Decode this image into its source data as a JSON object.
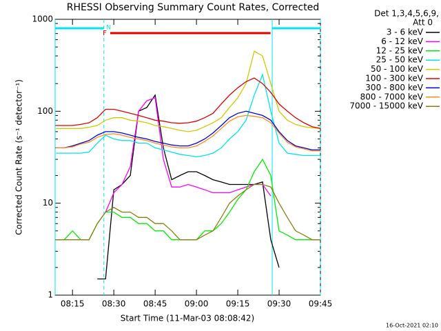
{
  "chart_data": {
    "type": "line",
    "title": "RHESSI Observing Summary Count Rates, Corrected",
    "xlabel": "Start Time (11-Mar-03 08:08:42)",
    "ylabel": "Corrected Count Rate (s⁻¹ detector⁻¹)",
    "legend_title": [
      "Det 1,3,4,5,6,9,",
      "Att 0"
    ],
    "timestamp": "16-Oct-2021 02:10",
    "yscale": "log",
    "xlim": [
      8.7,
      105
    ],
    "xticks": [
      {
        "value": 15,
        "label": "08:15"
      },
      {
        "value": 30,
        "label": "08:30"
      },
      {
        "value": 45,
        "label": "08:45"
      },
      {
        "value": 60,
        "label": "09:00"
      },
      {
        "value": 75,
        "label": "09:15"
      },
      {
        "value": 90,
        "label": "09:30"
      },
      {
        "value": 105,
        "label": "09:45"
      }
    ],
    "ylim": [
      1,
      1000
    ],
    "yticks": [
      1,
      10,
      100,
      1000
    ],
    "night_intervals": [
      [
        8.7,
        26.4
      ],
      [
        87.5,
        105
      ]
    ],
    "night_label": "N",
    "night_color": "#00e5ee",
    "flare_interval": [
      28.7,
      86.9
    ],
    "flare_label": "F",
    "flare_color": "#e00000",
    "legend": "right",
    "x": [
      9,
      12,
      15,
      18,
      21,
      24,
      27,
      30,
      33,
      36,
      39,
      42,
      45,
      48,
      51,
      54,
      57,
      60,
      63,
      66,
      69,
      72,
      75,
      78,
      81,
      84,
      87,
      90,
      93,
      96,
      99,
      102,
      105
    ],
    "series": [
      {
        "name": "3 - 6 keV",
        "color": "#000000",
        "values": [
          null,
          null,
          null,
          null,
          null,
          1.5,
          1.5,
          14,
          16,
          20,
          100,
          110,
          150,
          40,
          18,
          20,
          22,
          22,
          20,
          18,
          17,
          16,
          16,
          16,
          16,
          17,
          4,
          2,
          null,
          null,
          null,
          null,
          null
        ]
      },
      {
        "name": "6 - 12 keV",
        "color": "#ff00ff",
        "values": [
          null,
          null,
          null,
          null,
          null,
          null,
          8,
          13,
          16,
          25,
          100,
          130,
          140,
          30,
          15,
          15,
          16,
          15,
          14,
          13,
          13,
          13,
          14,
          15,
          16,
          16,
          12,
          null,
          null,
          null,
          null,
          null,
          null
        ]
      },
      {
        "name": "12 - 25 keV",
        "color": "#00ee00",
        "values": [
          4,
          4,
          5,
          4,
          4,
          6,
          8,
          8,
          7,
          7,
          6,
          6,
          5,
          5,
          4,
          4,
          4,
          4,
          5,
          5,
          6,
          8,
          11,
          14,
          22,
          30,
          20,
          5,
          4.5,
          4,
          4,
          4,
          4
        ]
      },
      {
        "name": "25 - 50 keV",
        "color": "#00e5ee",
        "values": [
          35,
          35,
          35,
          35,
          36,
          45,
          55,
          50,
          48,
          48,
          45,
          45,
          40,
          38,
          36,
          34,
          33,
          32,
          33,
          35,
          40,
          50,
          60,
          80,
          150,
          250,
          100,
          45,
          35,
          34,
          33,
          33,
          33
        ]
      },
      {
        "name": "50 - 100 keV",
        "color": "#d4c800",
        "values": [
          65,
          65,
          65,
          65,
          67,
          70,
          80,
          85,
          85,
          80,
          78,
          75,
          70,
          68,
          65,
          62,
          60,
          62,
          68,
          75,
          85,
          110,
          140,
          200,
          450,
          400,
          200,
          100,
          80,
          72,
          68,
          66,
          65
        ]
      },
      {
        "name": "100 - 300 keV",
        "color": "#e00000",
        "values": [
          70,
          70,
          70,
          72,
          75,
          85,
          105,
          105,
          100,
          95,
          90,
          85,
          80,
          78,
          75,
          74,
          75,
          78,
          85,
          95,
          120,
          150,
          180,
          210,
          230,
          200,
          160,
          120,
          100,
          85,
          75,
          68,
          65
        ]
      },
      {
        "name": "300 - 800 keV",
        "color": "#0000e0",
        "values": [
          40,
          40,
          42,
          45,
          48,
          55,
          60,
          60,
          58,
          55,
          52,
          50,
          47,
          45,
          43,
          42,
          42,
          45,
          50,
          58,
          70,
          85,
          95,
          100,
          95,
          90,
          80,
          60,
          48,
          42,
          40,
          38,
          38
        ]
      },
      {
        "name": "800 - 7000 keV",
        "color": "#ff8c1a",
        "values": [
          40,
          40,
          41,
          44,
          46,
          52,
          56,
          57,
          55,
          52,
          50,
          48,
          45,
          43,
          41,
          40,
          40,
          42,
          47,
          54,
          65,
          78,
          87,
          90,
          88,
          85,
          75,
          58,
          46,
          41,
          39,
          37,
          37
        ]
      },
      {
        "name": "7000 - 15000 keV",
        "color": "#8b7d12",
        "values": [
          4,
          4,
          4,
          4,
          4,
          6,
          8,
          9,
          8,
          8,
          7,
          7,
          6,
          6,
          5,
          4,
          4,
          4,
          4.5,
          5,
          7,
          10,
          12,
          14,
          16,
          16,
          15,
          10,
          7,
          5,
          4.5,
          4,
          4
        ]
      }
    ]
  }
}
